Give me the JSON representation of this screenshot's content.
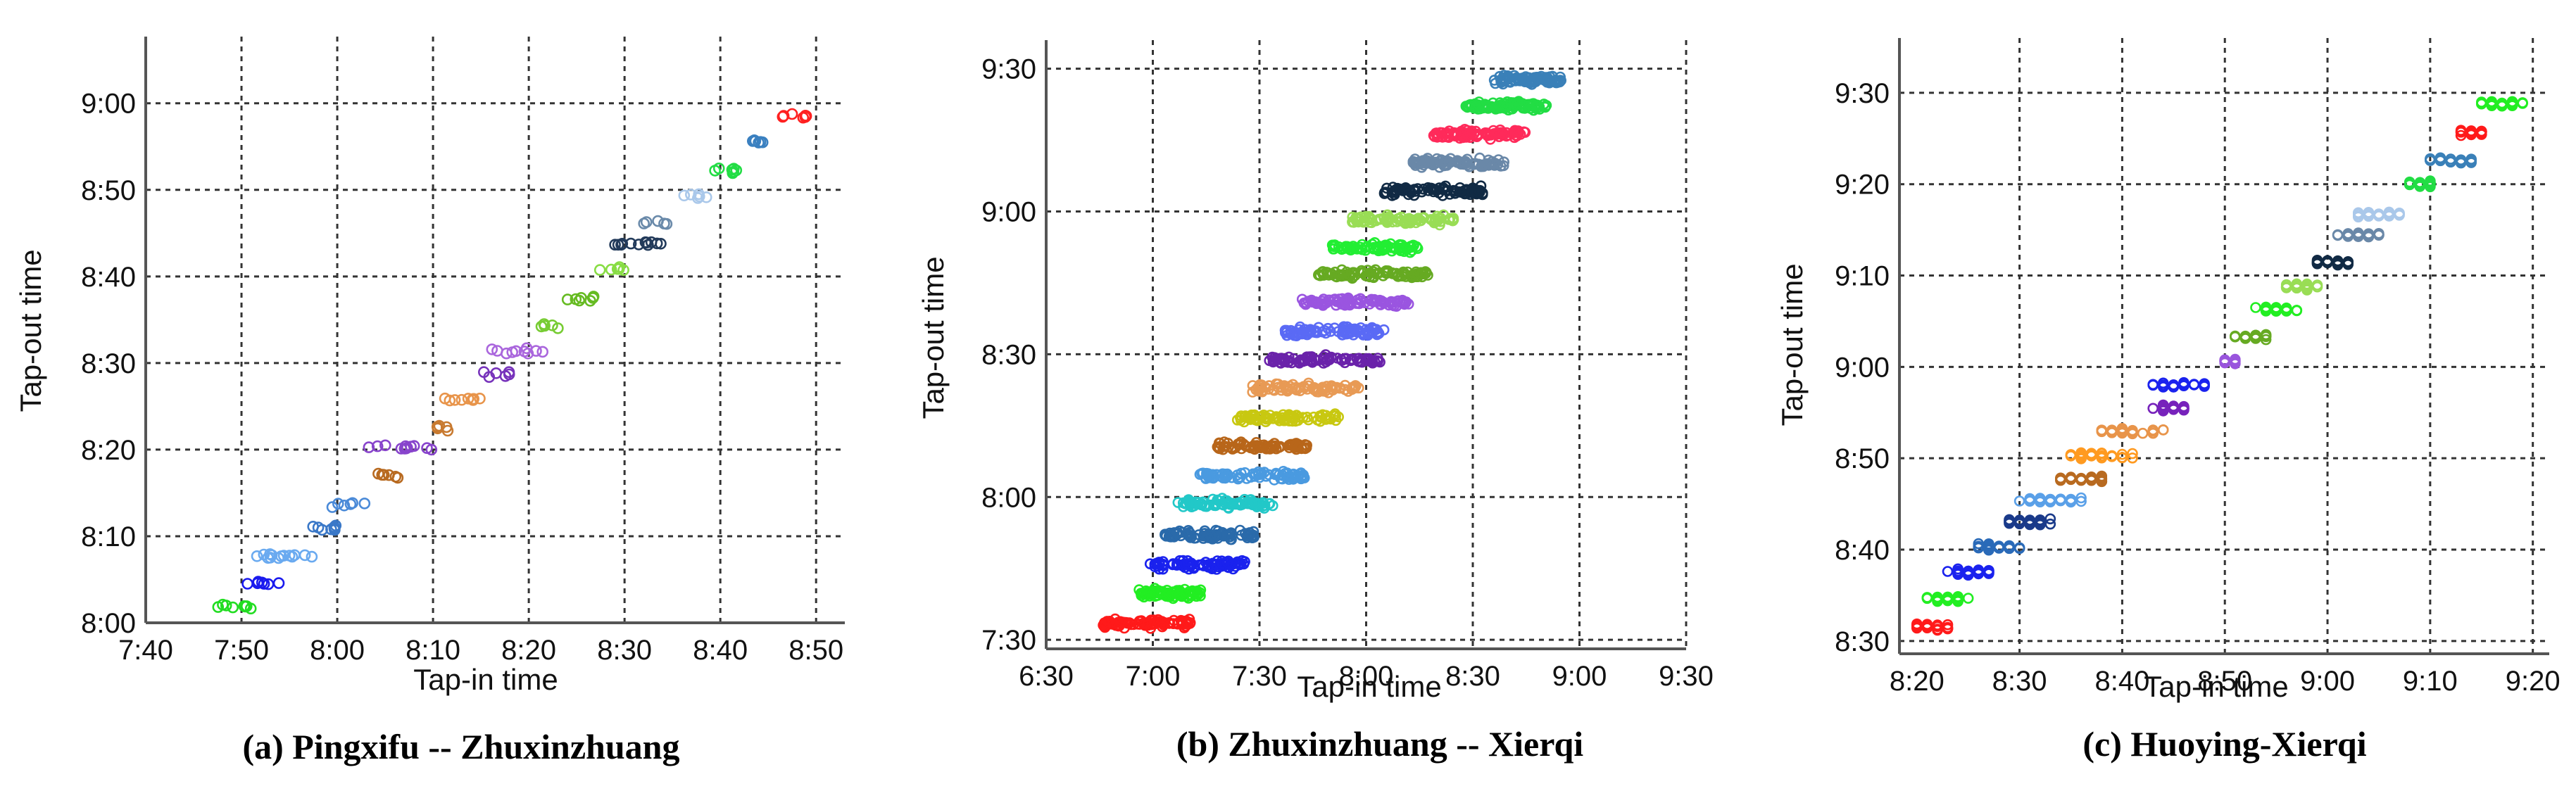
{
  "figure": {
    "panels": [
      "a",
      "b",
      "c"
    ]
  },
  "chart_data": [
    {
      "id": "a",
      "type": "scatter",
      "title": "(a) Pingxifu -- Zhuxinzhuang",
      "xlabel": "Tap-in time",
      "ylabel": "Tap-out time",
      "x_ticks": [
        "7:40",
        "7:50",
        "8:00",
        "8:10",
        "8:20",
        "8:30",
        "8:40",
        "8:50"
      ],
      "y_ticks": [
        "8:00",
        "8:10",
        "8:20",
        "8:30",
        "8:40",
        "8:50",
        "9:00"
      ],
      "xlim_min": [
        460,
        533
      ],
      "ylim_min": [
        480,
        547
      ],
      "grid": true,
      "marker": "open-circle",
      "geometry": {
        "x0": 207,
        "x1": 1200,
        "y0": 885,
        "y1": 52,
        "xmin": 460,
        "xmax": 533,
        "ymin": 480,
        "ymax": 547.7
      },
      "clusters": [
        {
          "color": "#22dd22",
          "x": [
            467,
            472
          ],
          "y": 481.8,
          "n": 8
        },
        {
          "color": "#1a1aee",
          "x": [
            470,
            474
          ],
          "y": 484.6,
          "n": 7
        },
        {
          "color": "#6aaaf0",
          "x": [
            471,
            478
          ],
          "y": 487.7,
          "n": 14
        },
        {
          "color": "#3a78c8",
          "x": [
            477,
            481
          ],
          "y": 490.9,
          "n": 8
        },
        {
          "color": "#4a8ad8",
          "x": [
            479,
            484
          ],
          "y": 493.7,
          "n": 6
        },
        {
          "color": "#b86a20",
          "x": [
            484,
            487
          ],
          "y": 497.0,
          "n": 7
        },
        {
          "color": "#8844cc",
          "x": [
            483,
            490
          ],
          "y": 500.2,
          "n": 12
        },
        {
          "color": "#c87a30",
          "x": [
            490,
            492
          ],
          "y": 502.5,
          "n": 5
        },
        {
          "color": "#e8944a",
          "x": [
            491,
            495
          ],
          "y": 505.8,
          "n": 9
        },
        {
          "color": "#7733bb",
          "x": [
            495,
            498
          ],
          "y": 508.7,
          "n": 6
        },
        {
          "color": "#aa66dd",
          "x": [
            496,
            502
          ],
          "y": 511.4,
          "n": 10
        },
        {
          "color": "#77cc33",
          "x": [
            501,
            504
          ],
          "y": 514.3,
          "n": 5
        },
        {
          "color": "#66bb22",
          "x": [
            504,
            507
          ],
          "y": 517.5,
          "n": 7
        },
        {
          "color": "#88dd44",
          "x": [
            507,
            510
          ],
          "y": 520.8,
          "n": 6
        },
        {
          "color": "#223a5a",
          "x": [
            508,
            514
          ],
          "y": 523.8,
          "n": 12
        },
        {
          "color": "#6a8aaa",
          "x": [
            512,
            516
          ],
          "y": 526.3,
          "n": 5
        },
        {
          "color": "#aac8ea",
          "x": [
            516,
            519
          ],
          "y": 529.3,
          "n": 6
        },
        {
          "color": "#22dd44",
          "x": [
            519,
            522
          ],
          "y": 532.2,
          "n": 7
        },
        {
          "color": "#3a80c0",
          "x": [
            523,
            525
          ],
          "y": 535.6,
          "n": 6
        },
        {
          "color": "#ff2020",
          "x": [
            526,
            529
          ],
          "y": 538.4,
          "n": 7
        }
      ]
    },
    {
      "id": "b",
      "type": "scatter",
      "title": "(b) Zhuxinzhuang  -- Xierqi",
      "xlabel": "Tap-in time",
      "ylabel": "Tap-out time",
      "x_ticks": [
        "6:30",
        "7:00",
        "7:30",
        "8:00",
        "8:30",
        "9:00",
        "9:30"
      ],
      "y_ticks": [
        "7:30",
        "8:00",
        "8:30",
        "9:00",
        "9:30"
      ],
      "grid": true,
      "marker": "open-circle",
      "geometry": {
        "x0": 1486,
        "x1": 2395,
        "y0": 922,
        "y1": 57,
        "xmin": 390,
        "xmax": 570,
        "ymin": 448.1,
        "ymax": 576
      },
      "clusters": [
        {
          "color": "#ff1a1a",
          "x": [
            406,
            431
          ],
          "y": 453.5,
          "n": 90
        },
        {
          "color": "#22ee22",
          "x": [
            416,
            434
          ],
          "y": 459.8,
          "n": 80
        },
        {
          "color": "#1a22ee",
          "x": [
            418,
            446
          ],
          "y": 465.8,
          "n": 80
        },
        {
          "color": "#2a6aaa",
          "x": [
            423,
            449
          ],
          "y": 472.0,
          "n": 80
        },
        {
          "color": "#22c8c8",
          "x": [
            427,
            454
          ],
          "y": 478.6,
          "n": 80
        },
        {
          "color": "#4a9ae0",
          "x": [
            433,
            463
          ],
          "y": 484.4,
          "n": 80
        },
        {
          "color": "#b8661a",
          "x": [
            438,
            464
          ],
          "y": 490.6,
          "n": 80
        },
        {
          "color": "#c8c811",
          "x": [
            443,
            473
          ],
          "y": 496.6,
          "n": 80
        },
        {
          "color": "#e89a55",
          "x": [
            448,
            478
          ],
          "y": 502.8,
          "n": 80
        },
        {
          "color": "#6a22aa",
          "x": [
            452,
            484
          ],
          "y": 508.8,
          "n": 80
        },
        {
          "color": "#5a6af5",
          "x": [
            457,
            485
          ],
          "y": 514.8,
          "n": 90
        },
        {
          "color": "#9a55e0",
          "x": [
            462,
            492
          ],
          "y": 521.0,
          "n": 90
        },
        {
          "color": "#66aa22",
          "x": [
            466,
            498
          ],
          "y": 526.8,
          "n": 90
        },
        {
          "color": "#22ee33",
          "x": [
            470,
            496
          ],
          "y": 532.4,
          "n": 80
        },
        {
          "color": "#99dd55",
          "x": [
            476,
            505
          ],
          "y": 538.3,
          "n": 90
        },
        {
          "color": "#112a44",
          "x": [
            485,
            513
          ],
          "y": 544.3,
          "n": 90
        },
        {
          "color": "#6a88a8",
          "x": [
            493,
            519
          ],
          "y": 550.2,
          "n": 90
        },
        {
          "color": "#ff2a5a",
          "x": [
            499,
            525
          ],
          "y": 556.3,
          "n": 90
        },
        {
          "color": "#22dd44",
          "x": [
            508,
            531
          ],
          "y": 562.2,
          "n": 90
        },
        {
          "color": "#3a80b8",
          "x": [
            516,
            535
          ],
          "y": 567.7,
          "n": 90
        }
      ]
    },
    {
      "id": "c",
      "type": "scatter",
      "title": "(c) Huoying-Xierqi",
      "xlabel": "Tap-in time",
      "ylabel": "Tap-out time",
      "x_ticks": [
        "8:20",
        "8:30",
        "8:40",
        "8:50",
        "9:00",
        "9:10",
        "9:20"
      ],
      "y_ticks": [
        "8:30",
        "8:40",
        "8:50",
        "9:00",
        "9:10",
        "9:20",
        "9:30"
      ],
      "grid": true,
      "marker": "open-circle",
      "geometry": {
        "x0": 2698,
        "x1": 3621,
        "y0": 929,
        "y1": 54,
        "xmin": 498.3,
        "xmax": 561.6,
        "ymin": 508.6,
        "ymax": 576
      },
      "clusters": [
        {
          "color": "#ff1a1a",
          "x": [
            500,
            503
          ],
          "y": 511.5,
          "n": 30
        },
        {
          "color": "#22ee22",
          "x": [
            501,
            505
          ],
          "y": 514.6,
          "n": 30
        },
        {
          "color": "#1a22ee",
          "x": [
            503,
            507
          ],
          "y": 517.5,
          "n": 30
        },
        {
          "color": "#2a6ab8",
          "x": [
            506,
            510
          ],
          "y": 520.3,
          "n": 30
        },
        {
          "color": "#1a3a8a",
          "x": [
            509,
            513
          ],
          "y": 523.0,
          "n": 30
        },
        {
          "color": "#5aa0e8",
          "x": [
            510,
            516
          ],
          "y": 525.4,
          "n": 36
        },
        {
          "color": "#b86a20",
          "x": [
            514,
            518
          ],
          "y": 527.7,
          "n": 30
        },
        {
          "color": "#ff9a20",
          "x": [
            515,
            521
          ],
          "y": 530.3,
          "n": 36
        },
        {
          "color": "#e8944a",
          "x": [
            518,
            524
          ],
          "y": 533.0,
          "n": 30
        },
        {
          "color": "#7722bb",
          "x": [
            523,
            526
          ],
          "y": 535.5,
          "n": 24
        },
        {
          "color": "#1a22ee",
          "x": [
            523,
            529
          ],
          "y": 538.0,
          "n": 28
        },
        {
          "color": "#9955dd",
          "x": [
            530,
            531
          ],
          "y": 540.6,
          "n": 18
        },
        {
          "color": "#66aa22",
          "x": [
            531,
            534
          ],
          "y": 543.3,
          "n": 26
        },
        {
          "color": "#22ee22",
          "x": [
            533,
            537
          ],
          "y": 546.3,
          "n": 30
        },
        {
          "color": "#99dd55",
          "x": [
            536,
            539
          ],
          "y": 548.8,
          "n": 24
        },
        {
          "color": "#112a44",
          "x": [
            539,
            542
          ],
          "y": 551.5,
          "n": 24
        },
        {
          "color": "#6a88a8",
          "x": [
            541,
            545
          ],
          "y": 554.4,
          "n": 30
        },
        {
          "color": "#aac8ea",
          "x": [
            543,
            547
          ],
          "y": 556.7,
          "n": 26
        },
        {
          "color": "#22dd44",
          "x": [
            548,
            550
          ],
          "y": 560.0,
          "n": 26
        },
        {
          "color": "#3a80b8",
          "x": [
            550,
            554
          ],
          "y": 562.6,
          "n": 30
        },
        {
          "color": "#ff1a1a",
          "x": [
            553,
            556
          ],
          "y": 565.6,
          "n": 28
        },
        {
          "color": "#22ee22",
          "x": [
            555,
            559
          ],
          "y": 568.8,
          "n": 30
        }
      ]
    }
  ]
}
